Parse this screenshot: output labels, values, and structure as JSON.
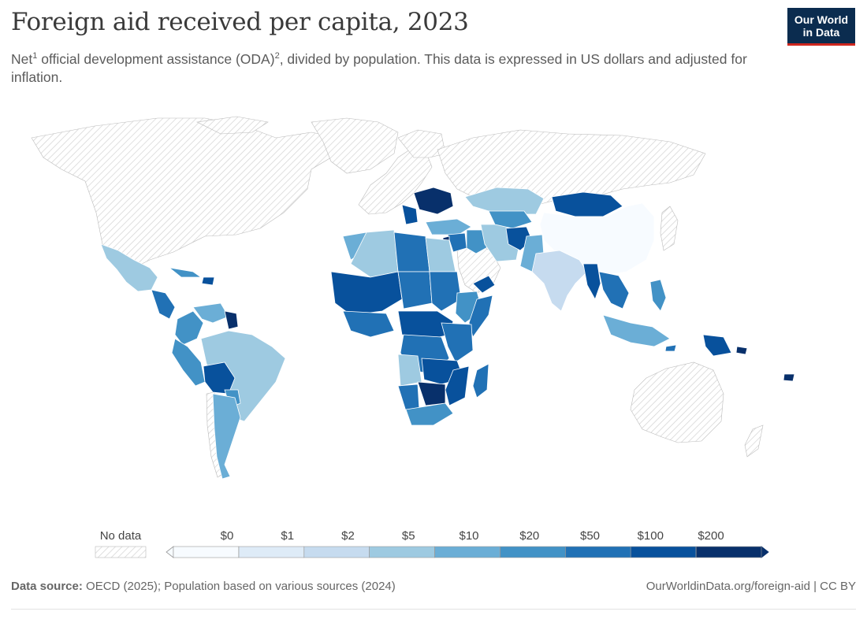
{
  "header": {
    "title": "Foreign aid received per capita, 2023",
    "subtitle_part1": "Net",
    "subtitle_sup1": "1",
    "subtitle_part2": " official development assistance (ODA)",
    "subtitle_sup2": "2",
    "subtitle_part3": ", divided by population. This data is expressed in US dollars and adjusted for inflation.",
    "logo_line1": "Our World",
    "logo_line2": "in Data"
  },
  "legend": {
    "no_data_label": "No data",
    "bins": [
      "$0",
      "$1",
      "$2",
      "$5",
      "$10",
      "$20",
      "$50",
      "$100",
      "$200"
    ],
    "colors": [
      "#f7fbff",
      "#deebf7",
      "#c6dbef",
      "#9ecae1",
      "#6baed6",
      "#4292c6",
      "#2171b5",
      "#08519c",
      "#08306b"
    ]
  },
  "colors": {
    "no_data": "#e6e6e6",
    "border": "#ffffff",
    "brand_navy": "#0b2c4f",
    "brand_red": "#ce261e"
  },
  "footer": {
    "source_label": "Data source:",
    "source_text": " OECD (2025); Population based on various sources (2024)",
    "url_text": "OurWorldinData.org/foreign-aid | CC BY"
  }
}
